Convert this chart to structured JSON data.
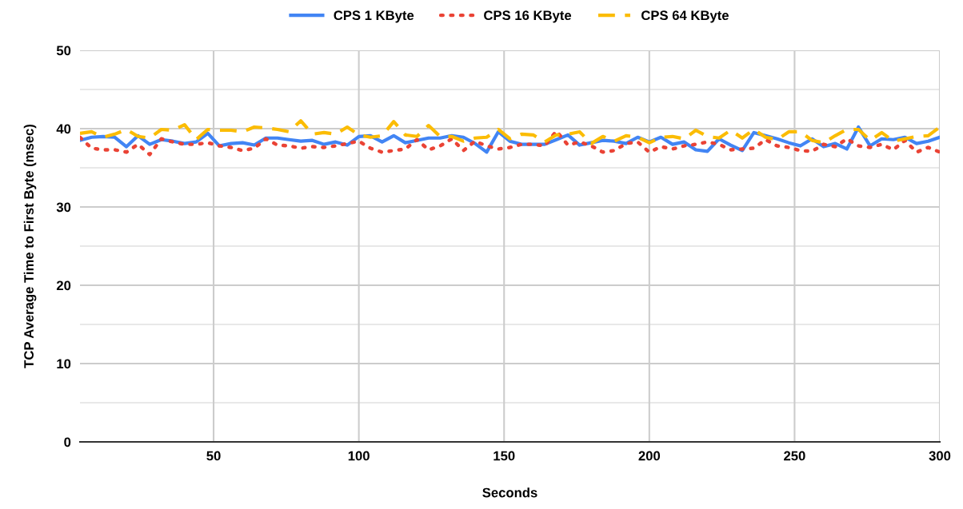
{
  "chart_data": {
    "type": "line",
    "xlabel": "Seconds",
    "ylabel": "TCP Average Time to First Byte (msec)",
    "x": [
      4,
      8,
      12,
      16,
      20,
      24,
      28,
      32,
      36,
      40,
      44,
      48,
      52,
      56,
      60,
      64,
      68,
      72,
      76,
      80,
      84,
      88,
      92,
      96,
      100,
      104,
      108,
      112,
      116,
      120,
      124,
      128,
      132,
      136,
      140,
      144,
      148,
      152,
      156,
      160,
      164,
      168,
      172,
      176,
      180,
      184,
      188,
      192,
      196,
      200,
      204,
      208,
      212,
      216,
      220,
      224,
      228,
      232,
      236,
      240,
      244,
      248,
      252,
      256,
      260,
      264,
      268,
      272,
      276,
      280,
      284,
      288,
      292,
      296,
      300
    ],
    "series": [
      {
        "name": "CPS 1 KByte",
        "color": "#4285f4",
        "line_style": "solid",
        "values": [
          38.5,
          38.9,
          39.0,
          38.9,
          37.7,
          39.1,
          38.0,
          38.6,
          38.4,
          38.1,
          38.3,
          39.4,
          37.8,
          38.1,
          38.2,
          37.9,
          38.8,
          38.8,
          38.6,
          38.4,
          38.5,
          38.0,
          38.3,
          37.9,
          39.0,
          39.1,
          38.3,
          39.1,
          38.2,
          38.5,
          38.8,
          38.8,
          39.1,
          38.9,
          38.1,
          37.0,
          39.6,
          38.4,
          38.0,
          38.0,
          38.0,
          38.6,
          39.2,
          37.9,
          38.2,
          38.5,
          38.4,
          38.1,
          38.9,
          38.3,
          38.9,
          38.0,
          38.3,
          37.3,
          37.1,
          38.7,
          37.9,
          37.2,
          39.5,
          39.1,
          38.7,
          38.2,
          37.8,
          38.7,
          37.7,
          38.1,
          37.4,
          40.2,
          37.8,
          38.7,
          38.6,
          38.9,
          38.1,
          38.4,
          38.9
        ]
      },
      {
        "name": "CPS 16 KByte",
        "color": "#ea4335",
        "line_style": "dotted",
        "values": [
          38.9,
          37.5,
          37.3,
          37.3,
          37.0,
          38.0,
          36.7,
          38.7,
          38.3,
          38.0,
          38.0,
          38.2,
          37.8,
          37.6,
          37.2,
          37.5,
          38.7,
          37.9,
          37.8,
          37.5,
          37.7,
          37.6,
          37.8,
          38.1,
          38.4,
          37.5,
          37.0,
          37.2,
          37.4,
          38.6,
          37.3,
          37.8,
          38.7,
          37.2,
          38.4,
          37.8,
          37.4,
          37.6,
          38.0,
          38.0,
          37.8,
          39.7,
          37.9,
          38.3,
          37.8,
          37.0,
          37.2,
          38.1,
          38.3,
          37.0,
          37.7,
          37.4,
          37.8,
          38.0,
          38.3,
          38.0,
          37.3,
          37.4,
          37.5,
          38.6,
          37.8,
          37.6,
          37.2,
          37.1,
          38.0,
          37.7,
          38.7,
          37.8,
          37.6,
          38.0,
          37.3,
          38.5,
          37.0,
          37.6,
          37.0
        ]
      },
      {
        "name": "CPS 64 KByte",
        "color": "#fbbc04",
        "line_style": "dashed",
        "values": [
          39.4,
          39.6,
          38.9,
          39.3,
          39.9,
          39.0,
          38.8,
          39.9,
          39.8,
          40.5,
          38.6,
          39.9,
          39.8,
          39.8,
          39.6,
          40.2,
          40.1,
          39.9,
          39.6,
          41.0,
          39.3,
          39.5,
          39.3,
          40.2,
          39.2,
          38.9,
          39.1,
          40.9,
          39.2,
          39.0,
          40.4,
          39.0,
          39.0,
          38.4,
          38.8,
          38.9,
          39.9,
          38.7,
          39.3,
          39.2,
          38.3,
          39.2,
          39.3,
          39.6,
          38.1,
          39.0,
          38.4,
          39.1,
          38.9,
          38.2,
          38.9,
          39.0,
          38.7,
          39.8,
          39.0,
          38.8,
          39.8,
          38.8,
          39.9,
          38.9,
          38.6,
          39.6,
          39.6,
          38.5,
          38.2,
          39.1,
          39.9,
          39.9,
          38.5,
          39.5,
          38.4,
          38.7,
          39.0,
          39.1,
          40.2
        ]
      }
    ],
    "xlim": [
      4,
      300
    ],
    "xticks": [
      50,
      100,
      150,
      200,
      250,
      300
    ],
    "ylim": [
      0,
      50
    ],
    "yticks": [
      0,
      {
        "value": 5,
        "label": null
      },
      10,
      {
        "value": 15,
        "label": null
      },
      20,
      {
        "value": 25,
        "label": null
      },
      30,
      {
        "value": 35,
        "label": null
      },
      40,
      {
        "value": 45,
        "label": null
      },
      50
    ],
    "grid": true,
    "legend": "top",
    "marker": "none"
  }
}
